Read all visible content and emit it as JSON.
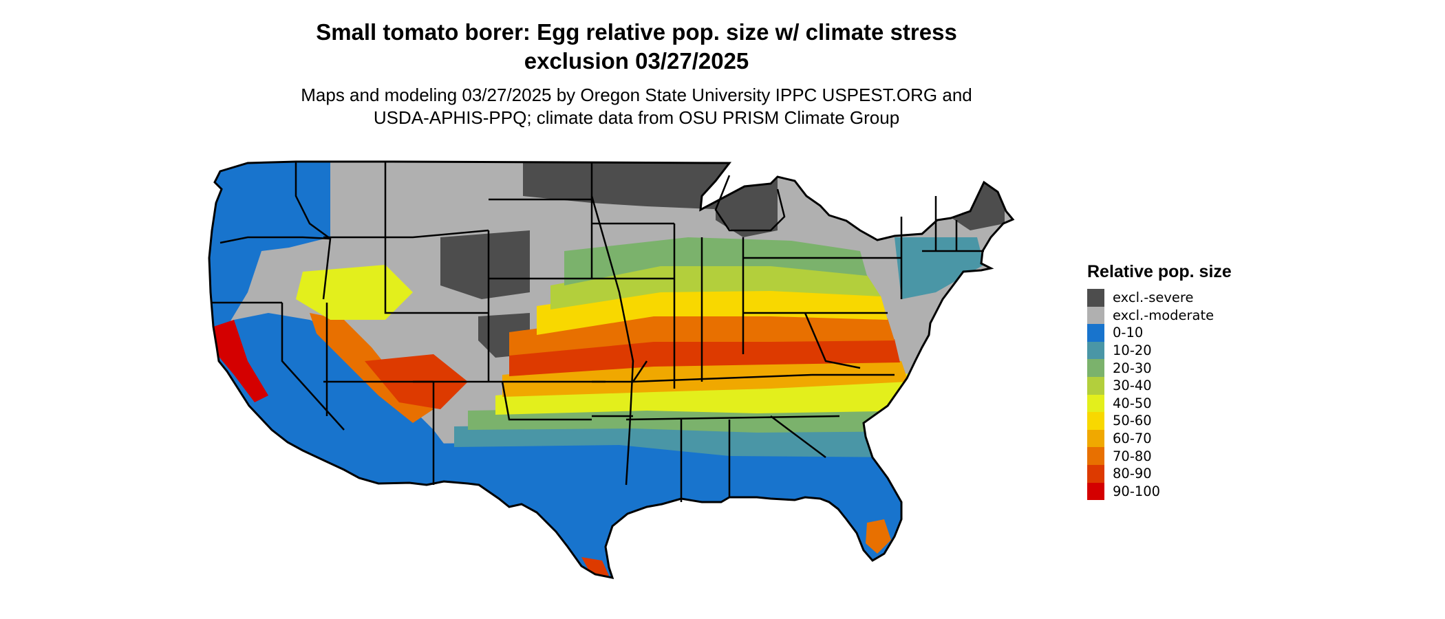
{
  "title": {
    "line1": "Small tomato borer: Egg relative pop. size w/ climate stress",
    "line2": "exclusion 03/27/2025"
  },
  "subtitle": {
    "line1": "Maps and modeling 03/27/2025 by Oregon State University IPPC USPEST.ORG and",
    "line2": "USDA-APHIS-PPQ; climate data from OSU PRISM Climate Group"
  },
  "legend": {
    "title": "Relative pop. size",
    "items": [
      {
        "label": "excl.-severe",
        "color": "#4d4d4d"
      },
      {
        "label": "excl.-moderate",
        "color": "#b0b0b0"
      },
      {
        "label": "0-10",
        "color": "#1874cd"
      },
      {
        "label": "10-20",
        "color": "#4a96a6"
      },
      {
        "label": "20-30",
        "color": "#7bb26c"
      },
      {
        "label": "30-40",
        "color": "#b3cf3c"
      },
      {
        "label": "40-50",
        "color": "#e3ef1c"
      },
      {
        "label": "50-60",
        "color": "#f8d800"
      },
      {
        "label": "60-70",
        "color": "#f0a800"
      },
      {
        "label": "70-80",
        "color": "#e87000"
      },
      {
        "label": "80-90",
        "color": "#dd3a00"
      },
      {
        "label": "90-100",
        "color": "#d40000"
      }
    ]
  },
  "map": {
    "region": "Contiguous United States",
    "border_color": "#000000"
  }
}
